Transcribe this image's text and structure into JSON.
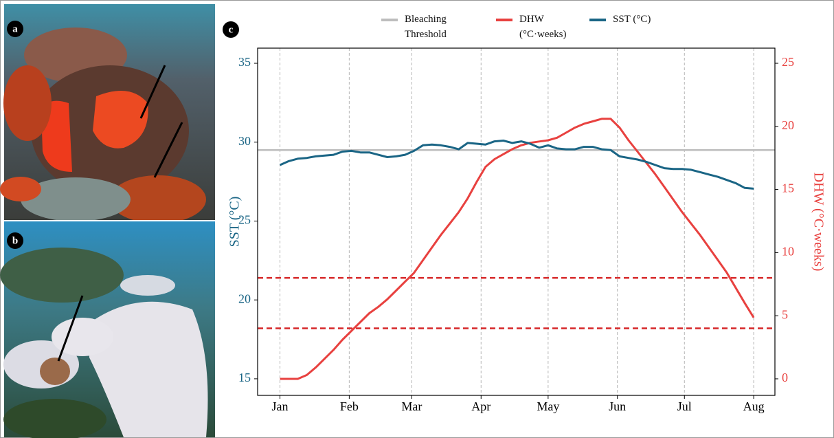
{
  "panel_labels": [
    "a",
    "b",
    "c"
  ],
  "chart_data": {
    "type": "line",
    "x": [
      0,
      4,
      8,
      12,
      16,
      20,
      24,
      28,
      32,
      36,
      40,
      44,
      48,
      52,
      56,
      60,
      64,
      68,
      72,
      76,
      80,
      84,
      88,
      92,
      96,
      100,
      104,
      108,
      112,
      116,
      120,
      124,
      128,
      132,
      136,
      140,
      144,
      148,
      152,
      156,
      160,
      164,
      168,
      172,
      176,
      180,
      184,
      188,
      192,
      196,
      200,
      204,
      208,
      212
    ],
    "series": [
      {
        "name": "DHW (°C·weeks)",
        "color": "#e8413f",
        "axis": "y2",
        "values": [
          0,
          0,
          0,
          0.3,
          0.9,
          1.6,
          2.3,
          3.1,
          3.8,
          4.5,
          5.2,
          5.7,
          6.3,
          7.0,
          7.7,
          8.4,
          9.4,
          10.4,
          11.4,
          12.3,
          13.2,
          14.3,
          15.6,
          16.8,
          17.4,
          17.8,
          18.2,
          18.5,
          18.7,
          18.8,
          18.9,
          19.1,
          19.5,
          19.9,
          20.2,
          20.4,
          20.6,
          20.6,
          19.9,
          18.9,
          18.0,
          17.1,
          16.2,
          15.2,
          14.2,
          13.2,
          12.3,
          11.4,
          10.4,
          9.4,
          8.4,
          7.2,
          6.0,
          4.85
        ]
      },
      {
        "name": "SST (°C)",
        "color": "#1a6585",
        "axis": "y",
        "values": [
          28.55,
          28.8,
          28.95,
          29.0,
          29.1,
          29.15,
          29.2,
          29.4,
          29.45,
          29.35,
          29.35,
          29.2,
          29.05,
          29.1,
          29.2,
          29.45,
          29.8,
          29.85,
          29.8,
          29.7,
          29.55,
          29.95,
          29.9,
          29.85,
          30.05,
          30.1,
          29.95,
          30.05,
          29.9,
          29.65,
          29.8,
          29.6,
          29.55,
          29.55,
          29.7,
          29.7,
          29.55,
          29.5,
          29.1,
          29.0,
          28.9,
          28.75,
          28.55,
          28.35,
          28.3,
          28.3,
          28.25,
          28.1,
          27.95,
          27.8,
          27.6,
          27.4,
          27.1,
          27.05
        ]
      }
    ],
    "reference_lines": [
      {
        "name": "Bleaching Threshold",
        "value": 29.5,
        "axis": "y",
        "color": "#bdbdbd",
        "style": "solid",
        "legend": true
      },
      {
        "value": 8,
        "axis": "y2",
        "color": "#d62728",
        "style": "dashed",
        "legend": false
      },
      {
        "value": 4,
        "axis": "y2",
        "color": "#d62728",
        "style": "dashed",
        "legend": false
      }
    ],
    "xlim": [
      -10,
      221.5
    ],
    "xticks": [
      {
        "value": 0,
        "label": "Jan"
      },
      {
        "value": 31,
        "label": "Feb"
      },
      {
        "value": 59,
        "label": "Mar"
      },
      {
        "value": 90,
        "label": "Apr"
      },
      {
        "value": 120,
        "label": "May"
      },
      {
        "value": 151,
        "label": "Jun"
      },
      {
        "value": 181,
        "label": "Jul"
      },
      {
        "value": 212,
        "label": "Aug"
      }
    ],
    "ylabel": "SST (°C)",
    "ylim": [
      13.95,
      35.96
    ],
    "yticks": [
      15,
      20,
      25,
      30,
      35
    ],
    "ycolor": "#1a6585",
    "y2label": "DHW (°C·weeks)",
    "y2lim": [
      -1.31,
      26.2
    ],
    "y2ticks": [
      0,
      5,
      10,
      15,
      20,
      25
    ],
    "y2color": "#e8413f",
    "xgrid": true
  }
}
